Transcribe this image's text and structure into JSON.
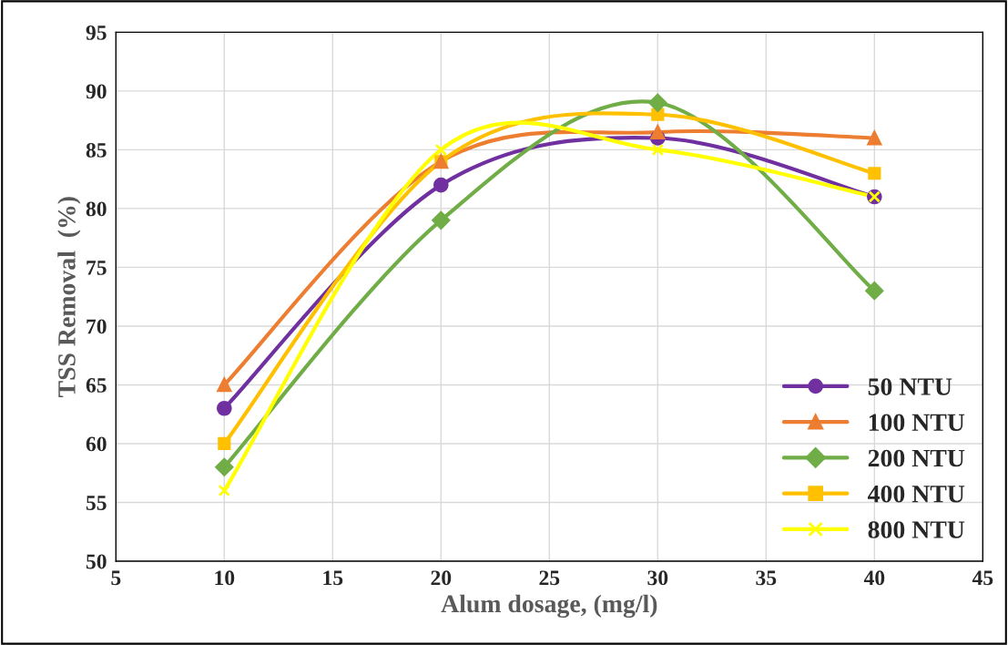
{
  "chart_data": {
    "type": "line",
    "xlabel": "Alum dosage, (mg/l)",
    "ylabel": "TSS Removal  (%)",
    "x": [
      10,
      20,
      30,
      40
    ],
    "series": [
      {
        "name": "50 NTU",
        "color": "#7030a0",
        "marker": "circle",
        "values": [
          63,
          82,
          86,
          81
        ]
      },
      {
        "name": "100 NTU",
        "color": "#ed7d31",
        "marker": "triangle",
        "values": [
          65,
          84,
          86.5,
          86
        ]
      },
      {
        "name": "200 NTU",
        "color": "#70ad47",
        "marker": "diamond",
        "values": [
          58,
          79,
          89,
          73
        ]
      },
      {
        "name": "400 NTU",
        "color": "#ffc000",
        "marker": "square",
        "values": [
          60,
          84,
          88,
          83
        ]
      },
      {
        "name": "800 NTU",
        "color": "#ffff00",
        "marker": "cross",
        "values": [
          56,
          85,
          85,
          81
        ]
      }
    ],
    "xlim": [
      5,
      45
    ],
    "xticks": [
      5,
      10,
      15,
      20,
      25,
      30,
      35,
      40,
      45
    ],
    "ylim": [
      50,
      95
    ],
    "yticks": [
      50,
      55,
      60,
      65,
      70,
      75,
      80,
      85,
      90,
      95
    ],
    "grid": true,
    "legend": "bottom right",
    "line_style": "solid"
  }
}
